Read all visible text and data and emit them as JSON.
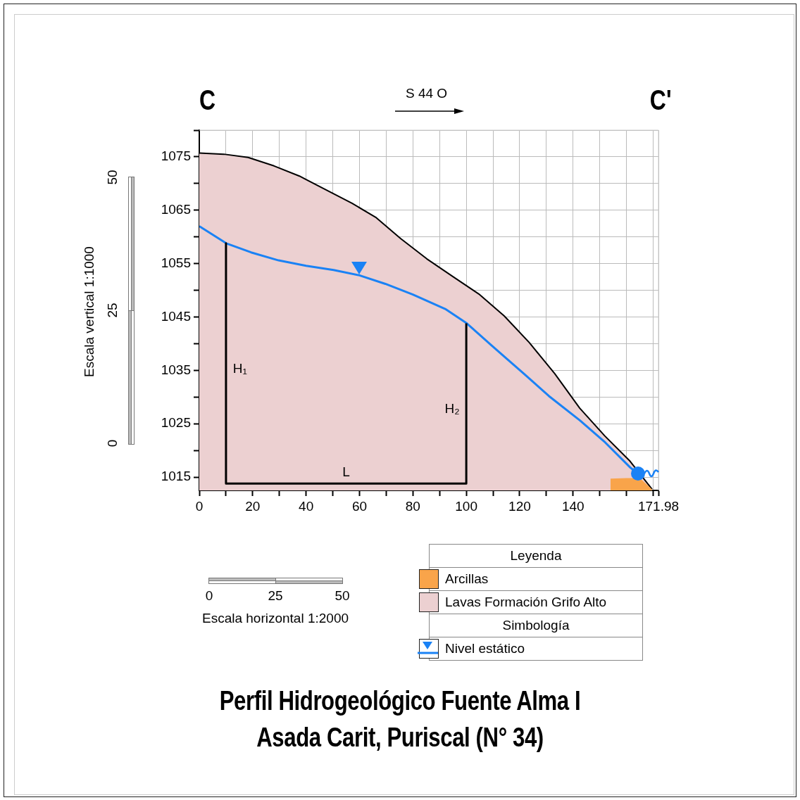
{
  "chart_data": {
    "type": "area",
    "title": "Perfil Hidrogeológico Fuente Alma I",
    "subtitle": "Asada Carit, Puriscal (N° 34)",
    "legend_title": "Leyenda",
    "legend": "bottom",
    "grid": true,
    "marker": "none",
    "xlim": [
      0,
      171.98
    ],
    "ylim": [
      1012.5,
      1080
    ],
    "xticks": [
      0,
      {
        "value": 10,
        "label": null
      },
      20,
      {
        "value": 30,
        "label": null
      },
      40,
      {
        "value": 50,
        "label": null
      },
      60,
      {
        "value": 70,
        "label": null
      },
      80,
      {
        "value": 90,
        "label": null
      },
      100,
      {
        "value": 110,
        "label": null
      },
      120,
      {
        "value": 130,
        "label": null
      },
      140,
      {
        "value": 150,
        "label": null
      },
      {
        "value": 160,
        "label": null
      },
      {
        "value": 170,
        "label": null
      },
      171.98
    ],
    "yticks": [
      1015,
      {
        "value": 1020,
        "label": null
      },
      1025,
      {
        "value": 1030,
        "label": null
      },
      1035,
      {
        "value": 1040,
        "label": null
      },
      1045,
      {
        "value": 1050,
        "label": null
      },
      1055,
      {
        "value": 1060,
        "label": null
      },
      1065,
      {
        "value": 1070,
        "label": null
      },
      1075,
      {
        "value": 1080,
        "label": null
      }
    ],
    "series": [
      {
        "name": "Arcillas",
        "color": "#f9a44a",
        "x": [
          154,
          160,
          165,
          169.6
        ],
        "values": [
          1014.7,
          1014.8,
          1014.8,
          1012.7
        ]
      },
      {
        "name": "Lavas Formación Grifo Alto",
        "color": "#ecd0d1",
        "x": [
          0,
          9.2,
          18.3,
          28,
          37.5,
          47.5,
          57.2,
          66.3,
          75.4,
          85.2,
          94.9,
          104.7,
          114.2,
          123.6,
          133.1,
          142.5,
          151.9,
          161.3,
          169.6
        ],
        "values": [
          1075.7,
          1075.5,
          1074.9,
          1073.3,
          1071.4,
          1068.8,
          1066.3,
          1063.6,
          1059.7,
          1055.9,
          1052.6,
          1049.3,
          1045.2,
          1040.2,
          1034.4,
          1027.9,
          1022.7,
          1018,
          1012.7
        ]
      },
      {
        "name": "Nivel estático",
        "type": "line",
        "color": "#1a82f5",
        "x": [
          0,
          10.1,
          19.4,
          29.7,
          40,
          50.3,
          60,
          69.7,
          80,
          92.1,
          100.2,
          109.6,
          121.5,
          130.9,
          142.6,
          152,
          161.4,
          164.4
        ],
        "values": [
          1062,
          1058.8,
          1057.1,
          1055.6,
          1054.6,
          1053.8,
          1052.8,
          1051.2,
          1049.2,
          1046.5,
          1043.8,
          1039.6,
          1034.4,
          1030.2,
          1025.6,
          1021.5,
          1016.8,
          1015.6
        ]
      },
      {
        "type": "line",
        "color": "#000000",
        "x": [
          10,
          10,
          100,
          100
        ],
        "values": [
          1058.8,
          1013.8,
          1013.8,
          1043.8
        ]
      }
    ],
    "annotations": [
      "C",
      "C'",
      "S 44 O",
      "Escala vertical 1:1000",
      "0",
      "25",
      "50",
      "Escala horizontal 1:2000",
      "0",
      "25",
      "50",
      "Simbología",
      "H₁",
      "H₂",
      "L"
    ]
  }
}
